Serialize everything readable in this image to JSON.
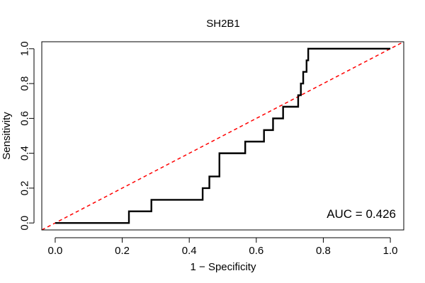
{
  "chart_data": {
    "type": "line",
    "title": "SH2B1",
    "xlabel": "1 − Specificity",
    "ylabel": "Sensitivity",
    "xlim": [
      -0.04,
      1.04
    ],
    "ylim": [
      -0.04,
      1.04
    ],
    "xticks": [
      0.0,
      0.2,
      0.4,
      0.6,
      0.8,
      1.0
    ],
    "xtick_labels": [
      "0.0",
      "0.2",
      "0.4",
      "0.6",
      "0.8",
      "1.0"
    ],
    "yticks": [
      0.0,
      0.2,
      0.4,
      0.6,
      0.8,
      1.0
    ],
    "ytick_labels": [
      "0.0",
      "0.2",
      "0.4",
      "0.6",
      "0.8",
      "1.0"
    ],
    "grid": false,
    "annotation": "AUC = 0.426",
    "series": [
      {
        "color": "#000000",
        "style": "step",
        "points": [
          [
            0.0,
            0.0
          ],
          [
            0.22,
            0.0
          ],
          [
            0.22,
            0.067
          ],
          [
            0.287,
            0.067
          ],
          [
            0.287,
            0.133
          ],
          [
            0.44,
            0.133
          ],
          [
            0.44,
            0.2
          ],
          [
            0.46,
            0.2
          ],
          [
            0.46,
            0.267
          ],
          [
            0.49,
            0.267
          ],
          [
            0.49,
            0.4
          ],
          [
            0.567,
            0.4
          ],
          [
            0.567,
            0.467
          ],
          [
            0.623,
            0.467
          ],
          [
            0.623,
            0.533
          ],
          [
            0.65,
            0.533
          ],
          [
            0.65,
            0.6
          ],
          [
            0.68,
            0.6
          ],
          [
            0.68,
            0.667
          ],
          [
            0.725,
            0.667
          ],
          [
            0.725,
            0.733
          ],
          [
            0.733,
            0.733
          ],
          [
            0.733,
            0.8
          ],
          [
            0.74,
            0.8
          ],
          [
            0.74,
            0.867
          ],
          [
            0.75,
            0.867
          ],
          [
            0.75,
            0.933
          ],
          [
            0.755,
            0.933
          ],
          [
            0.755,
            1.0
          ],
          [
            1.0,
            1.0
          ]
        ]
      },
      {
        "color": "#ff0000",
        "style": "dashed",
        "points": [
          [
            -0.04,
            -0.04
          ],
          [
            1.04,
            1.04
          ]
        ]
      }
    ]
  }
}
